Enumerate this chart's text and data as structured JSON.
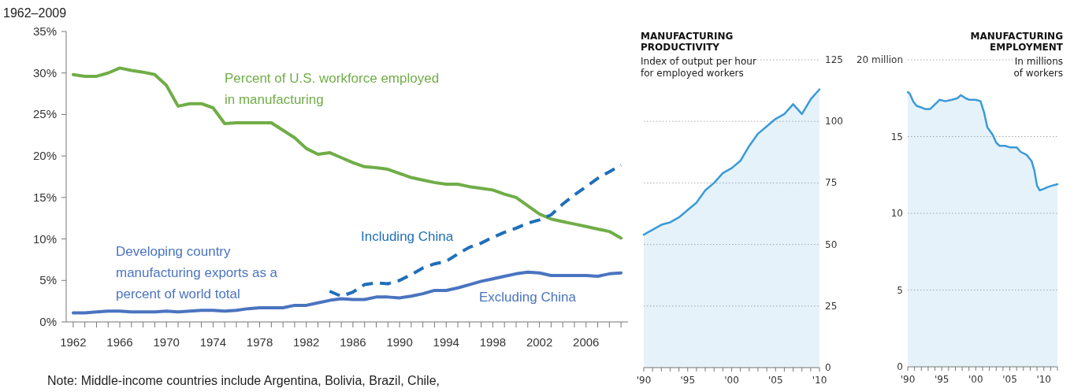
{
  "chart_data": [
    {
      "type": "line",
      "title": "1962–2009",
      "x": [
        1962,
        1963,
        1964,
        1965,
        1966,
        1967,
        1968,
        1969,
        1970,
        1971,
        1972,
        1973,
        1974,
        1975,
        1976,
        1977,
        1978,
        1979,
        1980,
        1981,
        1982,
        1983,
        1984,
        1985,
        1986,
        1987,
        1988,
        1989,
        1990,
        1991,
        1992,
        1993,
        1994,
        1995,
        1996,
        1997,
        1998,
        1999,
        2000,
        2001,
        2002,
        2003,
        2004,
        2005,
        2006,
        2007,
        2008,
        2009
      ],
      "series": [
        {
          "name": "Percent of U.S. workforce employed in manufacturing",
          "color": "#70ad47",
          "values": [
            29.8,
            29.6,
            29.6,
            30.0,
            30.6,
            30.3,
            30.1,
            29.8,
            28.5,
            26.0,
            26.3,
            26.3,
            25.8,
            23.9,
            24.0,
            24.0,
            24.0,
            24.0,
            23.1,
            22.2,
            20.9,
            20.2,
            20.4,
            19.8,
            19.2,
            18.7,
            18.6,
            18.4,
            17.9,
            17.4,
            17.1,
            16.8,
            16.6,
            16.6,
            16.3,
            16.1,
            15.9,
            15.4,
            15.0,
            14.0,
            13.0,
            12.4,
            12.1,
            11.8,
            11.5,
            11.2,
            10.9,
            10.1
          ]
        },
        {
          "name": "Including China",
          "color": "#1f6fba",
          "line_style": "dashed",
          "x": [
            1984,
            1985,
            1986,
            1987,
            1988,
            1989,
            1990,
            1991,
            1992,
            1993,
            1994,
            1995,
            1996,
            1997,
            1998,
            1999,
            2000,
            2001,
            2002,
            2003,
            2004,
            2005,
            2006,
            2007,
            2008,
            2009
          ],
          "values": [
            3.7,
            3.1,
            3.6,
            4.5,
            4.7,
            4.6,
            5.0,
            5.7,
            6.5,
            7.0,
            7.3,
            8.2,
            9.0,
            9.5,
            10.2,
            10.8,
            11.3,
            11.9,
            12.3,
            12.9,
            14.2,
            15.3,
            16.3,
            17.3,
            18.1,
            18.9
          ]
        },
        {
          "name": "Excluding China",
          "color": "#4a74c0",
          "values": [
            1.1,
            1.1,
            1.2,
            1.3,
            1.3,
            1.2,
            1.2,
            1.2,
            1.3,
            1.2,
            1.3,
            1.4,
            1.4,
            1.3,
            1.4,
            1.6,
            1.7,
            1.7,
            1.7,
            2.0,
            2.0,
            2.3,
            2.6,
            2.8,
            2.7,
            2.7,
            3.0,
            3.0,
            2.9,
            3.1,
            3.4,
            3.8,
            3.8,
            4.1,
            4.5,
            4.9,
            5.2,
            5.5,
            5.8,
            6.0,
            5.9,
            5.6,
            5.6,
            5.6,
            5.6,
            5.5,
            5.8,
            5.9
          ]
        }
      ],
      "xlim": [
        1961.4,
        2009.6
      ],
      "xticks": [
        1962,
        {
          "value": 1963,
          "label": null
        },
        {
          "value": 1964,
          "label": null
        },
        {
          "value": 1965,
          "label": null
        },
        1966,
        {
          "value": 1967,
          "label": null
        },
        {
          "value": 1968,
          "label": null
        },
        {
          "value": 1969,
          "label": null
        },
        1970,
        {
          "value": 1971,
          "label": null
        },
        {
          "value": 1972,
          "label": null
        },
        {
          "value": 1973,
          "label": null
        },
        1974,
        {
          "value": 1975,
          "label": null
        },
        {
          "value": 1976,
          "label": null
        },
        {
          "value": 1977,
          "label": null
        },
        1978,
        {
          "value": 1979,
          "label": null
        },
        {
          "value": 1980,
          "label": null
        },
        {
          "value": 1981,
          "label": null
        },
        1982,
        {
          "value": 1983,
          "label": null
        },
        {
          "value": 1984,
          "label": null
        },
        {
          "value": 1985,
          "label": null
        },
        1986,
        {
          "value": 1987,
          "label": null
        },
        {
          "value": 1988,
          "label": null
        },
        {
          "value": 1989,
          "label": null
        },
        1990,
        {
          "value": 1991,
          "label": null
        },
        {
          "value": 1992,
          "label": null
        },
        {
          "value": 1993,
          "label": null
        },
        1994,
        {
          "value": 1995,
          "label": null
        },
        {
          "value": 1996,
          "label": null
        },
        {
          "value": 1997,
          "label": null
        },
        1998,
        {
          "value": 1999,
          "label": null
        },
        {
          "value": 2000,
          "label": null
        },
        {
          "value": 2001,
          "label": null
        },
        2002,
        {
          "value": 2003,
          "label": null
        },
        {
          "value": 2004,
          "label": null
        },
        {
          "value": 2005,
          "label": null
        },
        2006,
        {
          "value": 2007,
          "label": null
        },
        {
          "value": 2008,
          "label": null
        },
        {
          "value": 2009,
          "label": null
        }
      ],
      "ylim": [
        0,
        35
      ],
      "yticks": [
        {
          "value": 0,
          "label": "0%"
        },
        {
          "value": 5,
          "label": "5%"
        },
        {
          "value": 10,
          "label": "10%"
        },
        {
          "value": 15,
          "label": "15%"
        },
        {
          "value": 20,
          "label": "20%"
        },
        {
          "value": 25,
          "label": "25%"
        },
        {
          "value": 30,
          "label": "30%"
        },
        {
          "value": 35,
          "label": "35%"
        }
      ],
      "legend": false,
      "annotations": [
        "Developing country manufacturing exports as a percent of world total",
        "Note:  Middle-income countries include Argentina, Bolivia, Brazil, Chile,"
      ]
    },
    {
      "type": "area",
      "title": "MANUFACTURING PRODUCTIVITY",
      "subtitle": "Index of output per hour for employed workers",
      "x": [
        1990,
        1991,
        1992,
        1993,
        1994,
        1995,
        1996,
        1997,
        1998,
        1999,
        2000,
        2001,
        2002,
        2003,
        2004,
        2005,
        2006,
        2007,
        2008,
        2009,
        2010
      ],
      "series": [
        {
          "color": "#3a9ad9",
          "values": [
            54,
            56,
            58,
            59,
            61,
            64,
            67,
            72,
            75,
            79,
            81,
            84,
            90,
            95,
            98,
            101,
            103,
            107,
            103,
            109,
            113
          ]
        }
      ],
      "xlim": [
        1990,
        2010
      ],
      "xticks": [
        {
          "value": 1990,
          "label": "'90"
        },
        {
          "value": 1991,
          "label": null
        },
        {
          "value": 1992,
          "label": null
        },
        {
          "value": 1993,
          "label": null
        },
        {
          "value": 1994,
          "label": null
        },
        {
          "value": 1995,
          "label": "'95"
        },
        {
          "value": 1996,
          "label": null
        },
        {
          "value": 1997,
          "label": null
        },
        {
          "value": 1998,
          "label": null
        },
        {
          "value": 1999,
          "label": null
        },
        {
          "value": 2000,
          "label": "'00"
        },
        {
          "value": 2001,
          "label": null
        },
        {
          "value": 2002,
          "label": null
        },
        {
          "value": 2003,
          "label": null
        },
        {
          "value": 2004,
          "label": null
        },
        {
          "value": 2005,
          "label": "'05"
        },
        {
          "value": 2006,
          "label": null
        },
        {
          "value": 2007,
          "label": null
        },
        {
          "value": 2008,
          "label": null
        },
        {
          "value": 2009,
          "label": null
        },
        {
          "value": 2010,
          "label": "'10"
        }
      ],
      "ylim": [
        0,
        125
      ],
      "yticks": [
        0,
        25,
        50,
        75,
        100,
        125
      ],
      "grid": "y"
    },
    {
      "type": "area",
      "title": "MANUFACTURING EMPLOYMENT",
      "subtitle": "In millions of workers",
      "series": [
        {
          "color": "#3a9ad9",
          "x": [
            1990.0,
            1990.3,
            1990.8,
            1991.3,
            1992.0,
            1992.5,
            1993.3,
            1994.0,
            1994.7,
            1995.5,
            1996.5,
            1997.3,
            1997.8,
            1998.5,
            1999.0,
            2000.0,
            2000.7,
            2001.2,
            2001.7,
            2002.5,
            2003.0,
            2003.5,
            2004.3,
            2005.0,
            2006.0,
            2006.6,
            2007.5,
            2008.2,
            2008.6,
            2009.0,
            2009.4,
            2010.0,
            2010.5,
            2011.2,
            2012.0
          ],
          "values": [
            17.9,
            17.8,
            17.3,
            17.0,
            16.9,
            16.8,
            16.8,
            17.1,
            17.4,
            17.3,
            17.4,
            17.5,
            17.7,
            17.5,
            17.4,
            17.4,
            17.3,
            16.6,
            15.6,
            15.1,
            14.6,
            14.4,
            14.4,
            14.3,
            14.3,
            14.0,
            13.8,
            13.4,
            12.8,
            11.8,
            11.5,
            11.6,
            11.7,
            11.8,
            11.9
          ]
        }
      ],
      "xlim": [
        1990,
        2012
      ],
      "xticks": [
        {
          "value": 1990,
          "label": "'90"
        },
        {
          "value": 1991,
          "label": null
        },
        {
          "value": 1992,
          "label": null
        },
        {
          "value": 1993,
          "label": null
        },
        {
          "value": 1994,
          "label": null
        },
        {
          "value": 1995,
          "label": "'95"
        },
        {
          "value": 1996,
          "label": null
        },
        {
          "value": 1997,
          "label": null
        },
        {
          "value": 1998,
          "label": null
        },
        {
          "value": 1999,
          "label": null
        },
        {
          "value": 2000,
          "label": "'00"
        },
        {
          "value": 2001,
          "label": null
        },
        {
          "value": 2002,
          "label": null
        },
        {
          "value": 2003,
          "label": null
        },
        {
          "value": 2004,
          "label": null
        },
        {
          "value": 2005,
          "label": "'05"
        },
        {
          "value": 2006,
          "label": null
        },
        {
          "value": 2007,
          "label": null
        },
        {
          "value": 2008,
          "label": null
        },
        {
          "value": 2009,
          "label": null
        },
        {
          "value": 2010,
          "label": "'10"
        },
        {
          "value": 2011,
          "label": null
        },
        {
          "value": 2012,
          "label": null
        }
      ],
      "ylim": [
        0,
        20
      ],
      "yticks": [
        0,
        5,
        10,
        15,
        {
          "value": 20,
          "label": "20 million"
        }
      ],
      "grid": "y"
    }
  ]
}
